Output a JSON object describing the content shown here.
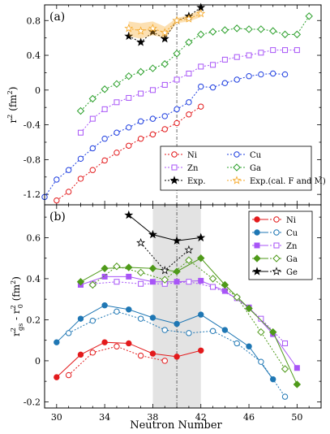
{
  "chart_data": [
    {
      "type": "line",
      "panel_label": "(a)",
      "xlabel": "",
      "ylabel": "r2 (fm2)",
      "xlim": [
        29,
        52
      ],
      "ylim": [
        -1.32,
        0.98
      ],
      "yticks": [
        -1.2,
        -0.8,
        -0.4,
        0,
        0.4,
        0.8
      ],
      "ytick_labels": [
        "-1.2",
        "-0.8",
        "-0.4",
        "0",
        "0.4",
        "0.8"
      ],
      "xticks": [
        30,
        34,
        38,
        42,
        46,
        50
      ],
      "vline_x": 40,
      "series": [
        {
          "name": "Ni",
          "color": "#e31a1c",
          "marker": "circle",
          "filled": false,
          "x": [
            30,
            31,
            32,
            33,
            34,
            35,
            36,
            37,
            38,
            39,
            40,
            41,
            42
          ],
          "y": [
            -1.27,
            -1.17,
            -1.02,
            -0.92,
            -0.81,
            -0.72,
            -0.64,
            -0.56,
            -0.51,
            -0.45,
            -0.38,
            -0.28,
            -0.19
          ]
        },
        {
          "name": "Cu",
          "color": "#1f3fe0",
          "marker": "circle",
          "filled": false,
          "x": [
            29,
            30,
            31,
            32,
            33,
            34,
            35,
            36,
            37,
            38,
            39,
            40,
            41,
            42,
            43,
            44,
            45,
            46,
            47,
            48,
            49
          ],
          "y": [
            -1.23,
            -1.03,
            -0.92,
            -0.79,
            -0.67,
            -0.56,
            -0.49,
            -0.43,
            -0.36,
            -0.33,
            -0.3,
            -0.22,
            -0.14,
            0.04,
            0.03,
            0.08,
            0.12,
            0.16,
            0.18,
            0.19,
            0.18
          ]
        },
        {
          "name": "Zn",
          "color": "#a855f7",
          "marker": "square",
          "filled": false,
          "x": [
            32,
            33,
            34,
            35,
            36,
            37,
            38,
            39,
            40,
            41,
            42,
            43,
            44,
            45,
            46,
            47,
            48,
            49,
            50
          ],
          "y": [
            -0.49,
            -0.33,
            -0.22,
            -0.14,
            -0.09,
            -0.04,
            0.0,
            0.06,
            0.12,
            0.19,
            0.27,
            0.29,
            0.35,
            0.38,
            0.4,
            0.43,
            0.46,
            0.46,
            0.46
          ]
        },
        {
          "name": "Ga",
          "color": "#2ca02c",
          "marker": "diamond",
          "filled": false,
          "x": [
            32,
            33,
            34,
            35,
            36,
            37,
            38,
            39,
            40,
            41,
            42,
            43,
            44,
            45,
            46,
            47,
            48,
            49,
            50,
            51
          ],
          "y": [
            -0.24,
            -0.1,
            0.01,
            0.07,
            0.16,
            0.21,
            0.25,
            0.3,
            0.42,
            0.55,
            0.64,
            0.67,
            0.69,
            0.71,
            0.7,
            0.7,
            0.68,
            0.64,
            0.64,
            0.85
          ]
        },
        {
          "name": "Exp.",
          "color": "#000000",
          "marker": "star",
          "filled": true,
          "x": [
            36,
            37,
            38,
            39,
            40,
            41,
            42
          ],
          "y": [
            0.62,
            0.55,
            0.67,
            0.59,
            0.8,
            0.85,
            0.95
          ]
        },
        {
          "name": "Exp.(cal. F and M)",
          "color": "#f5a623",
          "marker": "star",
          "filled": false,
          "x": [
            36,
            37,
            38,
            39,
            40,
            41,
            42
          ],
          "y": [
            0.71,
            0.68,
            0.71,
            0.66,
            0.8,
            0.82,
            0.88
          ],
          "band_lower": [
            0.62,
            0.59,
            0.63,
            0.6,
            0.77,
            0.79,
            0.84
          ],
          "band_upper": [
            0.79,
            0.77,
            0.79,
            0.73,
            0.83,
            0.86,
            0.93
          ]
        }
      ],
      "legend_placement": "lower-right",
      "legend_entries": [
        "Ni",
        "Cu",
        "Zn",
        "Ga",
        "Exp.",
        "Exp.(cal. F and M)"
      ]
    },
    {
      "type": "line",
      "panel_label": "(b)",
      "xlabel": "Neutron Number",
      "ylabel": "r2gs - r20 (fm2)",
      "xlim": [
        29,
        52
      ],
      "ylim": [
        -0.23,
        0.76
      ],
      "yticks": [
        -0.2,
        0,
        0.2,
        0.4,
        0.6
      ],
      "ytick_labels": [
        "-0.2",
        "0",
        "0.2",
        "0.4",
        "0.6"
      ],
      "xticks": [
        30,
        34,
        38,
        42,
        46,
        50
      ],
      "xtick_labels": [
        "30",
        "34",
        "38",
        "42",
        "46",
        "50"
      ],
      "shaded_x_range": [
        38,
        42
      ],
      "vline_x": 40,
      "series": [
        {
          "name": "Ni",
          "color": "#e31a1c",
          "filled": {
            "x": [
              30,
              32,
              34,
              36,
              38,
              40,
              42
            ],
            "y": [
              -0.08,
              0.03,
              0.09,
              0.085,
              0.035,
              0.02,
              0.05
            ]
          },
          "open": {
            "x": [
              31,
              33,
              35,
              37,
              39
            ],
            "y": [
              -0.07,
              0.04,
              0.07,
              0.025,
              0.0
            ]
          }
        },
        {
          "name": "Cu",
          "color": "#1f77b4",
          "filled": {
            "x": [
              30,
              32,
              34,
              36,
              38,
              40,
              42,
              44,
              46,
              48
            ],
            "y": [
              0.09,
              0.205,
              0.27,
              0.25,
              0.21,
              0.18,
              0.225,
              0.15,
              0.07,
              -0.09
            ]
          },
          "open": {
            "x": [
              31,
              33,
              35,
              37,
              39,
              41,
              43,
              45,
              47,
              49
            ],
            "y": [
              0.135,
              0.195,
              0.24,
              0.205,
              0.15,
              0.135,
              0.145,
              0.085,
              -0.005,
              -0.175
            ]
          }
        },
        {
          "name": "Zn",
          "color": "#a855f7",
          "filled": {
            "x": [
              32,
              34,
              36,
              38,
              40,
              42,
              44,
              46,
              48,
              50
            ],
            "y": [
              0.37,
              0.41,
              0.41,
              0.385,
              0.385,
              0.39,
              0.34,
              0.26,
              0.13,
              -0.035
            ]
          },
          "open": {
            "x": [
              33,
              35,
              37,
              39,
              41,
              43,
              45,
              47,
              49
            ],
            "y": [
              0.375,
              0.385,
              0.375,
              0.375,
              0.385,
              0.36,
              0.305,
              0.205,
              0.085
            ]
          }
        },
        {
          "name": "Ga",
          "color": "#4f9a1a",
          "filled": {
            "x": [
              32,
              34,
              36,
              38,
              40,
              42,
              44,
              46,
              48,
              50
            ],
            "y": [
              0.385,
              0.45,
              0.455,
              0.45,
              0.435,
              0.5,
              0.37,
              0.255,
              0.14,
              -0.115
            ]
          },
          "open": {
            "x": [
              33,
              35,
              37,
              39,
              41,
              43,
              45,
              47,
              49
            ],
            "y": [
              0.37,
              0.46,
              0.43,
              0.395,
              0.49,
              0.4,
              0.31,
              0.14,
              -0.04
            ]
          }
        },
        {
          "name": "Ge",
          "color": "#000000",
          "filled": {
            "x": [
              36,
              38,
              40,
              42
            ],
            "y": [
              0.71,
              0.615,
              0.585,
              0.6
            ]
          },
          "open": {
            "x": [
              37,
              39,
              41
            ],
            "y": [
              0.575,
              0.44,
              0.54
            ]
          }
        }
      ],
      "legend_placement": "top-right",
      "legend_entries": [
        "Ni",
        "Cu",
        "Zn",
        "Ga",
        "Ge"
      ]
    }
  ]
}
